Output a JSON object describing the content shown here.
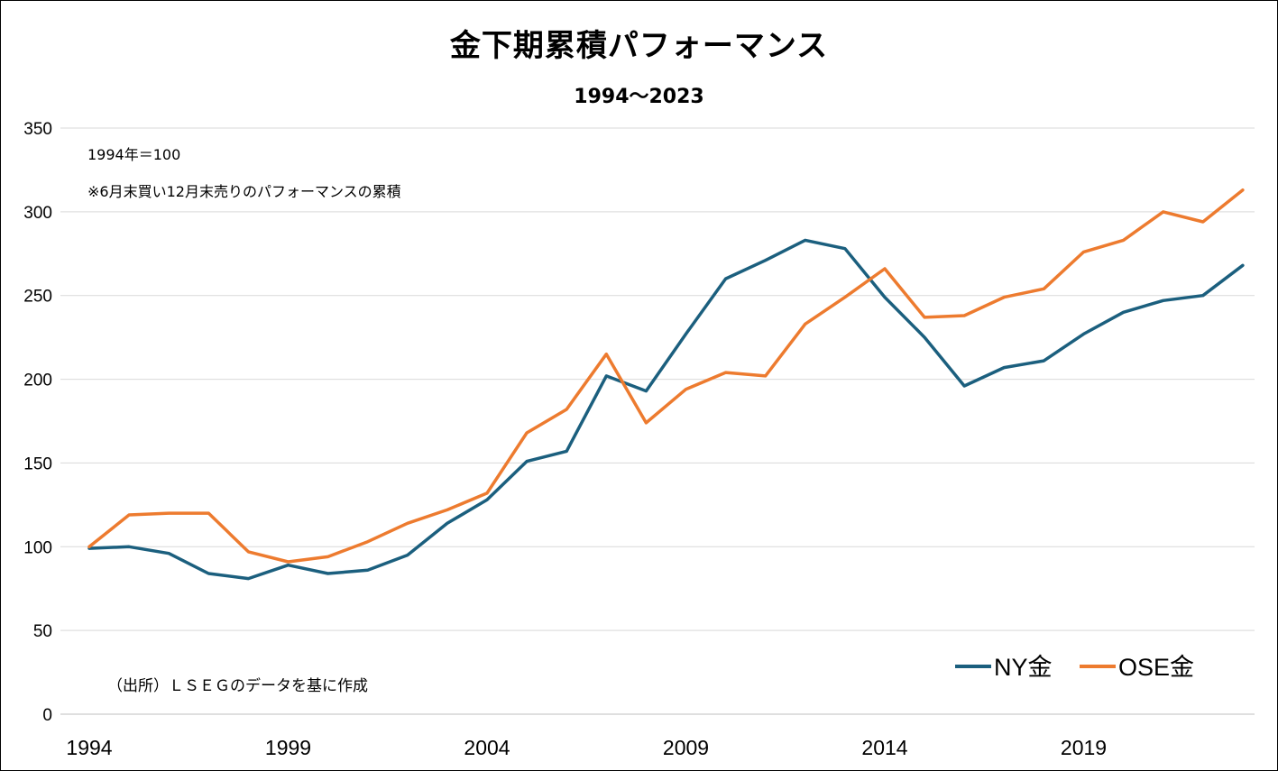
{
  "chart_data": {
    "type": "line",
    "title": "金下期累積パフォーマンス",
    "subtitle": "1994～2023",
    "notes": [
      "1994年＝100",
      "※6月末買い12月末売りのパフォーマンスの累積"
    ],
    "source": "（出所）ＬＳＥＧのデータを基に作成",
    "x": [
      1994,
      1995,
      1996,
      1997,
      1998,
      1999,
      2000,
      2001,
      2002,
      2003,
      2004,
      2005,
      2006,
      2007,
      2008,
      2009,
      2010,
      2011,
      2012,
      2013,
      2014,
      2015,
      2016,
      2017,
      2018,
      2019,
      2020,
      2021,
      2022,
      2023
    ],
    "x_tick_labels": [
      "1994",
      "1999",
      "2004",
      "2009",
      "2014",
      "2019"
    ],
    "x_ticks": [
      1994,
      1999,
      2004,
      2009,
      2014,
      2019
    ],
    "y_tick_labels": [
      "0",
      "50",
      "100",
      "150",
      "200",
      "250",
      "300",
      "350"
    ],
    "ylim": [
      0,
      350
    ],
    "grid": true,
    "legend_position": "bottom-right",
    "series": [
      {
        "name": "NY金",
        "color": "#1b5f7e",
        "values": [
          99,
          100,
          96,
          84,
          81,
          89,
          84,
          86,
          95,
          114,
          128,
          151,
          157,
          202,
          193,
          227,
          260,
          271,
          283,
          278,
          249,
          225,
          196,
          207,
          211,
          227,
          240,
          247,
          250,
          268
        ]
      },
      {
        "name": "OSE金",
        "color": "#ed7b2f",
        "values": [
          100,
          119,
          120,
          120,
          97,
          91,
          94,
          103,
          114,
          122,
          132,
          168,
          182,
          215,
          174,
          194,
          204,
          202,
          233,
          249,
          266,
          237,
          238,
          249,
          254,
          276,
          283,
          300,
          294,
          313
        ]
      }
    ]
  }
}
